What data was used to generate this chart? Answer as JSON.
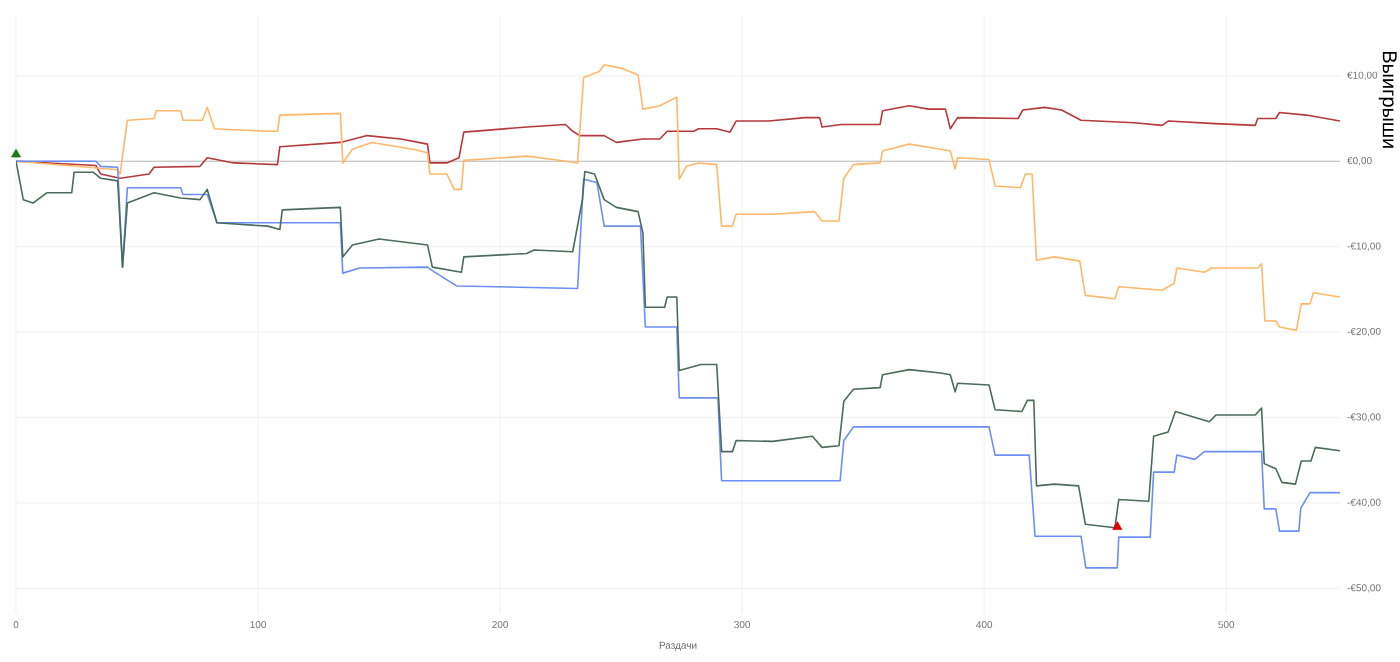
{
  "chart_data": {
    "type": "line",
    "xlabel": "Раздачи",
    "ylabel": "Выигрыши",
    "xlim": [
      0,
      547
    ],
    "ylim": [
      -53,
      17
    ],
    "xticks": [
      0,
      100,
      200,
      300,
      400,
      500
    ],
    "yticks": [
      {
        "value": 10,
        "label": "€10,00"
      },
      {
        "value": 0,
        "label": "€0,00"
      },
      {
        "value": -10,
        "label": "-€10,00"
      },
      {
        "value": -20,
        "label": "-€20,00"
      },
      {
        "value": -30,
        "label": "-€30,00"
      },
      {
        "value": -40,
        "label": "-€40,00"
      },
      {
        "value": -50,
        "label": "-€50,00"
      }
    ],
    "grid": true,
    "line_style": "solid",
    "ref_lines": [
      {
        "axis": "y",
        "value": 0,
        "color": "#bbbbbb"
      }
    ],
    "series": [
      {
        "color": "#b5393b",
        "x": [
          0,
          33,
          35,
          43,
          55,
          57,
          76,
          79,
          90,
          108,
          109,
          134,
          145,
          159,
          170,
          171,
          178,
          183,
          185,
          211,
          227,
          230,
          233,
          243,
          248,
          259,
          266,
          269,
          280,
          282,
          289.5,
          295,
          297.5,
          311,
          326,
          332,
          333,
          341,
          357,
          358,
          369,
          377,
          384,
          386,
          389,
          414,
          416,
          425,
          432,
          440,
          462,
          473.5,
          476,
          495.5,
          512,
          513,
          520.5,
          522,
          533,
          547
        ],
        "values": [
          0,
          -0.5,
          -1.5,
          -2.0,
          -1.5,
          -0.7,
          -0.6,
          0.4,
          -0.2,
          -0.4,
          1.7,
          2.2,
          3.0,
          2.6,
          2.0,
          -0.2,
          -0.2,
          0.4,
          3.4,
          4.0,
          4.3,
          3.5,
          3.0,
          3.0,
          2.2,
          2.6,
          2.6,
          3.5,
          3.5,
          3.8,
          3.8,
          3.4,
          4.7,
          4.7,
          5.1,
          5.1,
          4.0,
          4.3,
          4.3,
          5.9,
          6.5,
          6.1,
          6.1,
          3.8,
          5.1,
          5.0,
          6.0,
          6.3,
          6.0,
          4.8,
          4.5,
          4.2,
          4.7,
          4.4,
          4.2,
          5.0,
          5.0,
          5.7,
          5.4,
          4.7
        ]
      },
      {
        "color": "#ffb86a",
        "x": [
          0,
          42,
          43,
          46,
          57,
          58,
          68,
          69,
          77,
          79,
          82,
          104,
          108,
          109,
          134,
          135,
          139,
          147,
          164,
          170,
          171,
          178,
          181,
          184,
          185,
          211,
          222,
          232,
          234.5,
          241,
          243,
          250,
          257,
          259,
          266,
          273,
          274,
          277,
          282,
          289.5,
          291.5,
          296,
          297.5,
          312.6,
          330,
          333,
          340,
          342,
          346,
          357,
          358,
          369,
          382,
          386,
          388,
          389,
          402,
          404.5,
          415,
          417,
          419.8,
          421.6,
          429,
          439.5,
          441.8,
          454,
          455.6,
          473.5,
          478.5,
          479.6,
          491,
          494,
          513,
          514.6,
          516,
          520.5,
          522,
          529,
          531,
          534.6,
          536,
          547
        ],
        "values": [
          0,
          -1.0,
          -1.5,
          4.8,
          5.0,
          5.9,
          5.9,
          4.8,
          4.8,
          6.3,
          3.8,
          3.5,
          3.5,
          5.4,
          5.6,
          -0.2,
          1.4,
          2.2,
          1.4,
          1.0,
          -1.5,
          -1.5,
          -3.3,
          -3.3,
          0.1,
          0.6,
          0.2,
          -0.2,
          9.8,
          10.5,
          11.3,
          10.9,
          10.1,
          6.1,
          6.5,
          7.5,
          -2.1,
          -0.6,
          -0.2,
          -0.4,
          -7.6,
          -7.6,
          -6.2,
          -6.2,
          -5.9,
          -7.0,
          -7.0,
          -2.0,
          -0.4,
          -0.2,
          1.2,
          2.0,
          1.4,
          1.2,
          -0.9,
          0.4,
          0.2,
          -2.9,
          -3.1,
          -1.5,
          -1.5,
          -11.6,
          -11.2,
          -11.7,
          -15.7,
          -16.1,
          -14.7,
          -15.1,
          -14.3,
          -12.5,
          -13.0,
          -12.5,
          -12.5,
          -12.0,
          -18.7,
          -18.7,
          -19.4,
          -19.8,
          -16.7,
          -16.7,
          -15.4,
          -15.9
        ]
      },
      {
        "color": "#6c8ef5",
        "x": [
          0,
          33,
          35,
          42,
          44,
          46,
          68,
          69,
          79,
          83,
          109,
          134,
          135,
          142,
          170,
          172,
          182,
          232,
          234.5,
          240,
          243,
          258,
          260,
          273,
          274,
          283,
          290,
          291.5,
          340.5,
          342,
          346,
          402,
          404.5,
          418.6,
          421,
          440,
          442,
          455,
          455.6,
          468.6,
          470,
          478.5,
          479.6,
          487,
          491,
          514.6,
          515.7,
          520.5,
          522,
          530,
          530.8,
          534.6,
          547
        ],
        "values": [
          0,
          0,
          -0.6,
          -0.7,
          -12.4,
          -3.1,
          -3.1,
          -3.9,
          -3.9,
          -7.2,
          -7.2,
          -7.2,
          -13.1,
          -12.5,
          -12.4,
          -12.8,
          -14.6,
          -14.9,
          -2.1,
          -2.5,
          -7.6,
          -7.6,
          -19.4,
          -19.4,
          -27.7,
          -27.7,
          -27.7,
          -37.4,
          -37.4,
          -32.7,
          -31.1,
          -31.1,
          -34.4,
          -34.4,
          -43.9,
          -43.9,
          -47.6,
          -47.6,
          -44.0,
          -44.0,
          -36.4,
          -36.4,
          -34.4,
          -34.9,
          -34.0,
          -34.0,
          -40.7,
          -40.7,
          -43.3,
          -43.3,
          -40.6,
          -38.8,
          -38.8
        ]
      },
      {
        "color": "#4b6b5c",
        "x": [
          0,
          3,
          7,
          12.7,
          23,
          24,
          32,
          35,
          42,
          44,
          46,
          57,
          68,
          76,
          79,
          83,
          104,
          109,
          110,
          134,
          135,
          139,
          150,
          170,
          172,
          184,
          185,
          211,
          214,
          230,
          234,
          235,
          239,
          243,
          248,
          257,
          259,
          260,
          268,
          269,
          273,
          274,
          283,
          289.5,
          291.5,
          296,
          297.5,
          312.6,
          329,
          333,
          340,
          342,
          346,
          357,
          358,
          369,
          382,
          386,
          388,
          389,
          402,
          404.5,
          415.6,
          417.8,
          420.5,
          421.6,
          429,
          439,
          441.8,
          454,
          455.6,
          468,
          470,
          476,
          479,
          493,
          495.8,
          512,
          514.6,
          515.7,
          520.5,
          523,
          528.6,
          531,
          535,
          536.8,
          547
        ],
        "values": [
          0,
          -4.5,
          -4.9,
          -3.7,
          -3.7,
          -1.3,
          -1.3,
          -2.0,
          -2.3,
          -12.4,
          -4.9,
          -3.7,
          -4.3,
          -4.5,
          -3.3,
          -7.2,
          -7.6,
          -8.0,
          -5.7,
          -5.4,
          -11.2,
          -9.8,
          -9.1,
          -9.8,
          -12.4,
          -13.0,
          -11.2,
          -10.8,
          -10.4,
          -10.6,
          -4.5,
          -1.2,
          -1.5,
          -4.5,
          -5.4,
          -5.9,
          -8.4,
          -17.1,
          -17.1,
          -15.9,
          -15.9,
          -24.5,
          -23.8,
          -23.8,
          -34.0,
          -34.0,
          -32.7,
          -32.8,
          -32.2,
          -33.5,
          -33.3,
          -28.1,
          -26.7,
          -26.5,
          -25.0,
          -24.4,
          -24.8,
          -25.0,
          -27.0,
          -26.0,
          -26.2,
          -29.1,
          -29.3,
          -28.0,
          -28.0,
          -38.0,
          -37.8,
          -38.0,
          -42.5,
          -42.9,
          -39.6,
          -39.8,
          -32.2,
          -31.7,
          -29.3,
          -30.5,
          -29.7,
          -29.7,
          -28.9,
          -35.4,
          -36.0,
          -37.6,
          -37.8,
          -35.1,
          -35.1,
          -33.5,
          -33.9
        ]
      },
      {
        "type": "scatter",
        "marker": "triangle",
        "color": "#1a7a1a",
        "x": [
          0
        ],
        "values": [
          0.8
        ]
      },
      {
        "type": "scatter",
        "marker": "triangle",
        "color": "#dd0000",
        "x": [
          455
        ],
        "values": [
          -42.8
        ]
      }
    ]
  }
}
